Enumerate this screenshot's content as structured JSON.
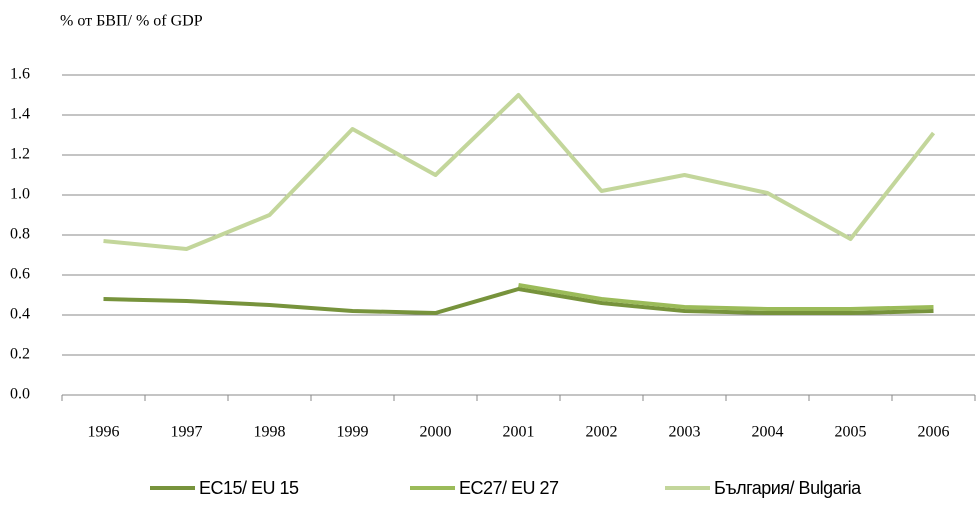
{
  "chart_data": {
    "type": "line",
    "y_axis_label": "% от БВП/ % of GDP",
    "categories": [
      "1996",
      "1997",
      "1998",
      "1999",
      "2000",
      "2001",
      "2002",
      "2003",
      "2004",
      "2005",
      "2006"
    ],
    "series": [
      {
        "name": "ЕС15/ EU 15",
        "color": "#77933c",
        "values": [
          0.48,
          0.47,
          0.45,
          0.42,
          0.41,
          0.53,
          0.46,
          0.42,
          0.41,
          0.41,
          0.42
        ]
      },
      {
        "name": "ЕС27/ EU 27",
        "color": "#9bbb59",
        "values": [
          null,
          null,
          null,
          null,
          null,
          0.55,
          0.48,
          0.44,
          0.43,
          0.43,
          0.44
        ]
      },
      {
        "name": "България/ Bulgaria",
        "color": "#c3d69b",
        "values": [
          0.77,
          0.73,
          0.9,
          1.33,
          1.1,
          1.5,
          1.02,
          1.1,
          1.01,
          0.78,
          1.31
        ]
      }
    ],
    "ylim": [
      0,
      1.6
    ],
    "yticks": [
      {
        "value": 0,
        "label": "0.0"
      },
      0.2,
      0.4,
      0.6,
      0.8,
      {
        "value": 1,
        "label": "1.0"
      },
      1.2,
      1.4,
      1.6
    ],
    "grid": true,
    "legend": "bottom"
  }
}
